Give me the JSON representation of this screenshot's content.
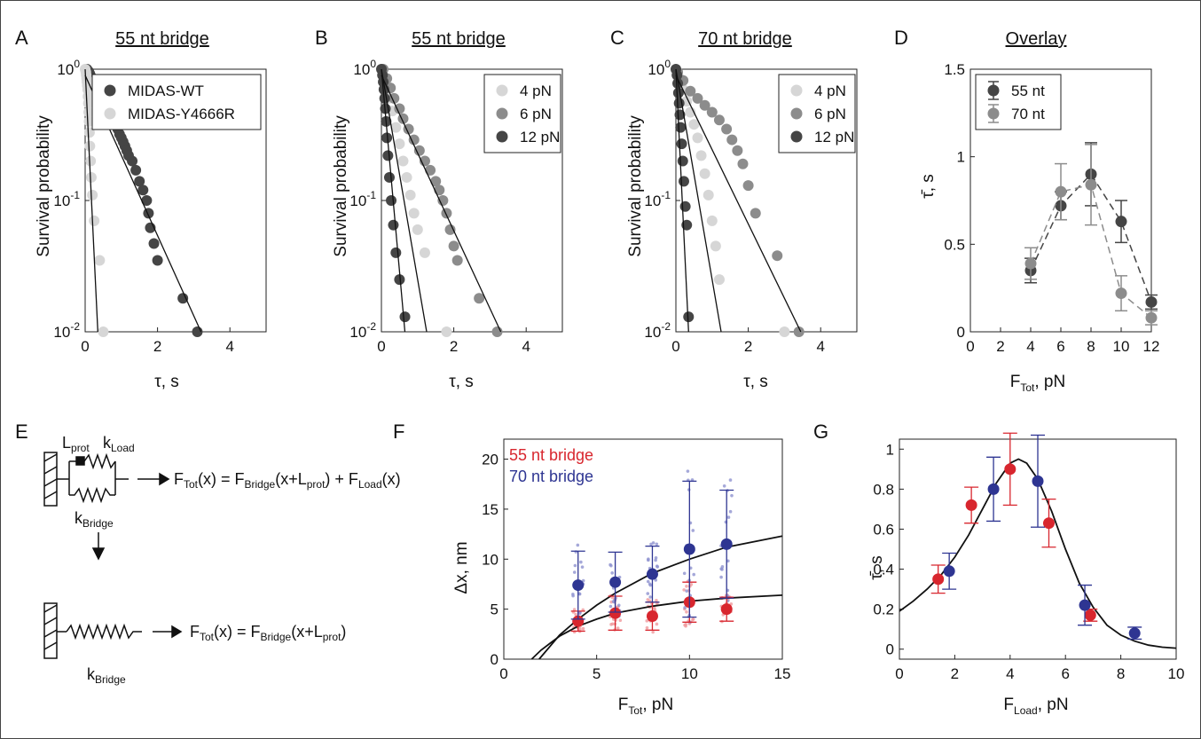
{
  "panels": {
    "A": {
      "letter": "A",
      "title": "55 nt bridge",
      "ylabel": "Survival probability",
      "xlabel_main": "τ",
      "xlabel_unit": ", s"
    },
    "B": {
      "letter": "B",
      "title": "55 nt bridge",
      "ylabel": "Survival probability",
      "xlabel_main": "τ",
      "xlabel_unit": ", s"
    },
    "C": {
      "letter": "C",
      "title": "70 nt bridge",
      "ylabel": "Survival probability",
      "xlabel_main": "τ",
      "xlabel_unit": ", s"
    },
    "D": {
      "letter": "D",
      "title": "Overlay",
      "ylabel": "τ̄, s",
      "xlabel_main": "F",
      "xlabel_sub": "Tot",
      "xlabel_unit": ", pN"
    },
    "E": {
      "letter": "E"
    },
    "F": {
      "letter": "F",
      "ylabel": "Δx, nm",
      "xlabel_main": "F",
      "xlabel_sub": "Tot",
      "xlabel_unit": ", pN"
    },
    "G": {
      "letter": "G",
      "ylabel": "τ̄, s",
      "xlabel_main": "F",
      "xlabel_sub": "Load",
      "xlabel_unit": ", pN"
    }
  },
  "schematic": {
    "l_prot": "L",
    "l_prot_sub": "prot",
    "k_load": "k",
    "k_load_sub": "Load",
    "k_bridge": "k",
    "k_bridge_sub": "Bridge",
    "eq1": {
      "a": "F",
      "a_sub": "Tot",
      "b": "(x) = F",
      "b_sub": "Bridge",
      "c": "(x+L",
      "c_sub": "prot",
      "d": ") + F",
      "d_sub": "Load",
      "e": "(x)"
    },
    "eq2": {
      "a": "F",
      "a_sub": "Tot",
      "b": "(x) = F",
      "b_sub": "Bridge",
      "c": "(x+L",
      "c_sub": "prot",
      "d": ")"
    },
    "k_bridge2": "k",
    "k_bridge2_sub": "Bridge"
  },
  "colors": {
    "dark": "#454545",
    "mid": "#8c8c8c",
    "light": "#d6d6d6",
    "red": "#d8262e",
    "blue": "#2e3592",
    "red_light": "#f09a9d",
    "blue_light": "#8f92cf"
  },
  "chart_data": [
    {
      "panel": "A",
      "type": "scatter",
      "yscale": "log",
      "xlim": [
        0,
        5
      ],
      "ylim": [
        0.01,
        1
      ],
      "xticks": [
        "0",
        "2",
        "4"
      ],
      "yticks": [
        "10-2",
        "10-1",
        "100"
      ],
      "series": [
        {
          "name": "MIDAS-WT",
          "color": "dark",
          "points": [
            [
              0.05,
              1
            ],
            [
              0.1,
              0.96
            ],
            [
              0.13,
              0.92
            ],
            [
              0.16,
              0.88
            ],
            [
              0.2,
              0.84
            ],
            [
              0.24,
              0.8
            ],
            [
              0.28,
              0.76
            ],
            [
              0.32,
              0.72
            ],
            [
              0.36,
              0.68
            ],
            [
              0.4,
              0.65
            ],
            [
              0.45,
              0.62
            ],
            [
              0.5,
              0.6
            ],
            [
              0.55,
              0.57
            ],
            [
              0.6,
              0.53
            ],
            [
              0.65,
              0.49
            ],
            [
              0.7,
              0.46
            ],
            [
              0.75,
              0.43
            ],
            [
              0.8,
              0.4
            ],
            [
              0.85,
              0.37
            ],
            [
              0.9,
              0.35
            ],
            [
              0.95,
              0.32
            ],
            [
              1.0,
              0.3
            ],
            [
              1.05,
              0.28
            ],
            [
              1.1,
              0.26
            ],
            [
              1.15,
              0.24
            ],
            [
              1.2,
              0.22
            ],
            [
              1.3,
              0.2
            ],
            [
              1.4,
              0.17
            ],
            [
              1.5,
              0.14
            ],
            [
              1.6,
              0.12
            ],
            [
              1.7,
              0.1
            ],
            [
              1.75,
              0.08
            ],
            [
              1.8,
              0.062
            ],
            [
              1.9,
              0.047
            ],
            [
              2.0,
              0.035
            ],
            [
              2.7,
              0.018
            ],
            [
              3.1,
              0.01
            ]
          ],
          "fit": [
            [
              0,
              0.9
            ],
            [
              3.2,
              0.01
            ]
          ]
        },
        {
          "name": "MIDAS-Y4666R",
          "color": "light",
          "points": [
            [
              0.0,
              1
            ],
            [
              0.02,
              0.95
            ],
            [
              0.03,
              0.9
            ],
            [
              0.04,
              0.85
            ],
            [
              0.05,
              0.8
            ],
            [
              0.06,
              0.75
            ],
            [
              0.07,
              0.7
            ],
            [
              0.08,
              0.62
            ],
            [
              0.09,
              0.55
            ],
            [
              0.1,
              0.47
            ],
            [
              0.11,
              0.4
            ],
            [
              0.12,
              0.33
            ],
            [
              0.13,
              0.26
            ],
            [
              0.15,
              0.2
            ],
            [
              0.17,
              0.15
            ],
            [
              0.2,
              0.11
            ],
            [
              0.25,
              0.07
            ],
            [
              0.4,
              0.035
            ],
            [
              0.5,
              0.01
            ]
          ],
          "fit": [
            [
              0,
              1
            ],
            [
              0.35,
              0.01
            ]
          ]
        }
      ]
    },
    {
      "panel": "B",
      "type": "scatter",
      "yscale": "log",
      "xlim": [
        0,
        5
      ],
      "ylim": [
        0.01,
        1
      ],
      "xticks": [
        "0",
        "2",
        "4"
      ],
      "yticks": [
        "10-2",
        "10-1",
        "100"
      ],
      "series": [
        {
          "name": "4 pN",
          "color": "light",
          "points": [
            [
              0.1,
              0.75
            ],
            [
              0.2,
              0.6
            ],
            [
              0.3,
              0.48
            ],
            [
              0.4,
              0.36
            ],
            [
              0.5,
              0.27
            ],
            [
              0.6,
              0.2
            ],
            [
              0.7,
              0.15
            ],
            [
              0.8,
              0.11
            ],
            [
              0.9,
              0.08
            ],
            [
              1.0,
              0.06
            ],
            [
              1.2,
              0.04
            ],
            [
              1.8,
              0.01
            ]
          ]
        },
        {
          "name": "6 pN",
          "color": "mid",
          "points": [
            [
              0.05,
              1
            ],
            [
              0.15,
              0.85
            ],
            [
              0.25,
              0.72
            ],
            [
              0.35,
              0.6
            ],
            [
              0.5,
              0.5
            ],
            [
              0.6,
              0.42
            ],
            [
              0.75,
              0.35
            ],
            [
              0.9,
              0.29
            ],
            [
              1.05,
              0.24
            ],
            [
              1.2,
              0.2
            ],
            [
              1.35,
              0.17
            ],
            [
              1.5,
              0.14
            ],
            [
              1.6,
              0.12
            ],
            [
              1.7,
              0.1
            ],
            [
              1.8,
              0.08
            ],
            [
              1.9,
              0.06
            ],
            [
              2.0,
              0.045
            ],
            [
              2.1,
              0.035
            ],
            [
              2.7,
              0.018
            ],
            [
              3.2,
              0.01
            ]
          ],
          "fit": [
            [
              0,
              0.9
            ],
            [
              3.3,
              0.01
            ]
          ]
        },
        {
          "name": "12 pN",
          "color": "dark",
          "points": [
            [
              0.0,
              1
            ],
            [
              0.03,
              0.9
            ],
            [
              0.05,
              0.8
            ],
            [
              0.07,
              0.7
            ],
            [
              0.09,
              0.6
            ],
            [
              0.11,
              0.5
            ],
            [
              0.13,
              0.4
            ],
            [
              0.15,
              0.3
            ],
            [
              0.18,
              0.22
            ],
            [
              0.22,
              0.15
            ],
            [
              0.27,
              0.1
            ],
            [
              0.33,
              0.065
            ],
            [
              0.4,
              0.04
            ],
            [
              0.5,
              0.025
            ],
            [
              0.65,
              0.013
            ]
          ],
          "fit": [
            [
              0,
              1
            ],
            [
              0.65,
              0.01
            ]
          ]
        }
      ],
      "extra_fits": [
        [
          [
            0,
            1
          ],
          [
            1.25,
            0.01
          ]
        ]
      ]
    },
    {
      "panel": "C",
      "type": "scatter",
      "yscale": "log",
      "xlim": [
        0,
        5
      ],
      "ylim": [
        0.01,
        1
      ],
      "xticks": [
        "0",
        "2",
        "4"
      ],
      "yticks": [
        "10-2",
        "10-1",
        "100"
      ],
      "series": [
        {
          "name": "4 pN",
          "color": "light",
          "points": [
            [
              0.1,
              0.85
            ],
            [
              0.2,
              0.7
            ],
            [
              0.3,
              0.57
            ],
            [
              0.4,
              0.47
            ],
            [
              0.5,
              0.38
            ],
            [
              0.6,
              0.3
            ],
            [
              0.7,
              0.22
            ],
            [
              0.8,
              0.16
            ],
            [
              0.9,
              0.11
            ],
            [
              1.0,
              0.07
            ],
            [
              1.1,
              0.045
            ],
            [
              1.2,
              0.025
            ],
            [
              3.0,
              0.01
            ]
          ],
          "fit": [
            [
              0,
              1
            ],
            [
              1.25,
              0.01
            ]
          ]
        },
        {
          "name": "6 pN",
          "color": "mid",
          "points": [
            [
              0.05,
              0.95
            ],
            [
              0.2,
              0.82
            ],
            [
              0.4,
              0.68
            ],
            [
              0.6,
              0.6
            ],
            [
              0.8,
              0.53
            ],
            [
              1.0,
              0.47
            ],
            [
              1.2,
              0.41
            ],
            [
              1.4,
              0.35
            ],
            [
              1.55,
              0.29
            ],
            [
              1.7,
              0.24
            ],
            [
              1.85,
              0.19
            ],
            [
              2.0,
              0.13
            ],
            [
              2.2,
              0.08
            ],
            [
              2.8,
              0.038
            ],
            [
              3.4,
              0.01
            ]
          ],
          "fit": [
            [
              0,
              0.9
            ],
            [
              3.45,
              0.01
            ]
          ]
        },
        {
          "name": "12 pN",
          "color": "dark",
          "points": [
            [
              0.0,
              1
            ],
            [
              0.03,
              0.9
            ],
            [
              0.05,
              0.78
            ],
            [
              0.07,
              0.66
            ],
            [
              0.09,
              0.55
            ],
            [
              0.11,
              0.45
            ],
            [
              0.13,
              0.36
            ],
            [
              0.16,
              0.27
            ],
            [
              0.19,
              0.2
            ],
            [
              0.22,
              0.14
            ],
            [
              0.26,
              0.09
            ],
            [
              0.3,
              0.065
            ],
            [
              0.35,
              0.013
            ]
          ],
          "fit": [
            [
              0,
              1
            ],
            [
              0.35,
              0.01
            ]
          ]
        }
      ]
    },
    {
      "panel": "D",
      "type": "line",
      "xlim": [
        0,
        12
      ],
      "ylim": [
        0,
        1.5
      ],
      "xticks": [
        "0",
        "2",
        "4",
        "6",
        "8",
        "10",
        "12"
      ],
      "yticks": [
        "0",
        "0.5",
        "1",
        "1.5"
      ],
      "series": [
        {
          "name": "55 nt",
          "color": "dark",
          "x": [
            4,
            6,
            8,
            10,
            12
          ],
          "y": [
            0.35,
            0.72,
            0.9,
            0.63,
            0.17
          ],
          "err": [
            0.07,
            0.08,
            0.18,
            0.12,
            0.04
          ]
        },
        {
          "name": "70 nt",
          "color": "mid",
          "x": [
            4,
            6,
            8,
            10,
            12
          ],
          "y": [
            0.39,
            0.8,
            0.84,
            0.22,
            0.08
          ],
          "err": [
            0.09,
            0.16,
            0.23,
            0.1,
            0.04
          ]
        }
      ]
    },
    {
      "panel": "F",
      "type": "scatter",
      "xlim": [
        0,
        15
      ],
      "ylim": [
        0,
        22
      ],
      "xticks": [
        "0",
        "5",
        "10",
        "15"
      ],
      "yticks": [
        "0",
        "5",
        "10",
        "15",
        "20"
      ],
      "series": [
        {
          "name": "55 nt bridge",
          "color": "red",
          "x": [
            4,
            6,
            8,
            10,
            12
          ],
          "y": [
            3.8,
            4.6,
            4.3,
            5.7,
            5.0
          ],
          "err": [
            1.0,
            1.7,
            1.4,
            2.0,
            1.2
          ]
        },
        {
          "name": "70 nt bridge",
          "color": "blue",
          "x": [
            4,
            6,
            8,
            10,
            12
          ],
          "y": [
            7.4,
            7.7,
            8.5,
            11.0,
            11.5
          ],
          "err": [
            3.4,
            3.0,
            2.8,
            6.8,
            5.4
          ]
        }
      ],
      "fits": [
        {
          "x": [
            1.9,
            2.5,
            3,
            4,
            5,
            6,
            8,
            10,
            12,
            15
          ],
          "y": [
            0,
            1.3,
            2.4,
            4.0,
            5.4,
            6.6,
            8.6,
            10.0,
            11.2,
            12.3
          ]
        },
        {
          "x": [
            1.5,
            2,
            2.5,
            3,
            4,
            5,
            6,
            8,
            10,
            12,
            15
          ],
          "y": [
            0,
            0.9,
            1.6,
            2.3,
            3.3,
            4.0,
            4.6,
            5.3,
            5.8,
            6.1,
            6.4
          ]
        }
      ]
    },
    {
      "panel": "G",
      "type": "scatter",
      "xlim": [
        0,
        10
      ],
      "ylim": [
        -0.05,
        1.05
      ],
      "xticks": [
        "0",
        "2",
        "4",
        "6",
        "8",
        "10"
      ],
      "yticks": [
        "0",
        "0.2",
        "0.4",
        "0.6",
        "0.8",
        "1"
      ],
      "series": [
        {
          "name": "55 nt",
          "color": "red",
          "x": [
            1.4,
            2.6,
            4.0,
            5.4,
            6.9
          ],
          "y": [
            0.35,
            0.72,
            0.9,
            0.63,
            0.17
          ],
          "err": [
            0.07,
            0.09,
            0.18,
            0.12,
            0.03
          ]
        },
        {
          "name": "70 nt",
          "color": "blue",
          "x": [
            1.8,
            3.4,
            5.0,
            6.7,
            8.5
          ],
          "y": [
            0.39,
            0.8,
            0.84,
            0.22,
            0.08
          ],
          "err": [
            0.09,
            0.16,
            0.23,
            0.1,
            0.03
          ]
        }
      ],
      "fit": {
        "x": [
          0,
          0.5,
          1,
          1.5,
          2,
          2.5,
          3,
          3.5,
          4,
          4.3,
          4.6,
          5,
          5.5,
          6,
          6.5,
          7,
          7.5,
          8,
          8.5,
          9,
          9.5,
          10
        ],
        "y": [
          0.19,
          0.24,
          0.3,
          0.37,
          0.46,
          0.57,
          0.7,
          0.83,
          0.93,
          0.95,
          0.93,
          0.85,
          0.69,
          0.5,
          0.33,
          0.21,
          0.12,
          0.07,
          0.04,
          0.02,
          0.01,
          0.005
        ]
      }
    }
  ]
}
